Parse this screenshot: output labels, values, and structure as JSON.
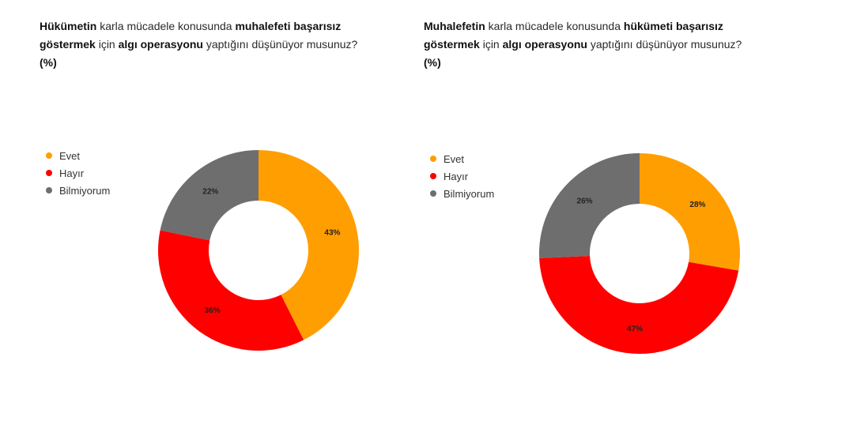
{
  "colors": {
    "evet": "#FF9E00",
    "hayir": "#FF0000",
    "bilmiyorum": "#6E6E6E"
  },
  "chart_data": [
    {
      "type": "pie",
      "title_parts": [
        {
          "text": "Hükümetin",
          "bold": true
        },
        {
          "text": " karla mücadele konusunda ",
          "bold": false
        },
        {
          "text": "muhalefeti başarısız göstermek",
          "bold": true
        },
        {
          "text": " için ",
          "bold": false
        },
        {
          "text": "algı operasyonu",
          "bold": true
        },
        {
          "text": " yaptığını düşünüyor musunuz? ",
          "bold": false
        },
        {
          "text": "(%)",
          "bold": true
        }
      ],
      "categories": [
        "Evet",
        "Hayır",
        "Bilmiyorum"
      ],
      "values": [
        43,
        36,
        22
      ],
      "data_labels": [
        "43%",
        "36%",
        "22%"
      ],
      "colors": [
        "#FF9E00",
        "#FF0000",
        "#6E6E6E"
      ],
      "donut": true,
      "legend_position": "left"
    },
    {
      "type": "pie",
      "title_parts": [
        {
          "text": "Muhalefetin",
          "bold": true
        },
        {
          "text": " karla mücadele konusunda ",
          "bold": false
        },
        {
          "text": "hükümeti başarısız göstermek",
          "bold": true
        },
        {
          "text": " için ",
          "bold": false
        },
        {
          "text": "algı operasyonu",
          "bold": true
        },
        {
          "text": " yaptığını düşünüyor musunuz? ",
          "bold": false
        },
        {
          "text": "(%)",
          "bold": true
        }
      ],
      "categories": [
        "Evet",
        "Hayır",
        "Bilmiyorum"
      ],
      "values": [
        28,
        47,
        26
      ],
      "data_labels": [
        "28%",
        "47%",
        "26%"
      ],
      "colors": [
        "#FF9E00",
        "#FF0000",
        "#6E6E6E"
      ],
      "donut": true,
      "legend_position": "left"
    }
  ]
}
